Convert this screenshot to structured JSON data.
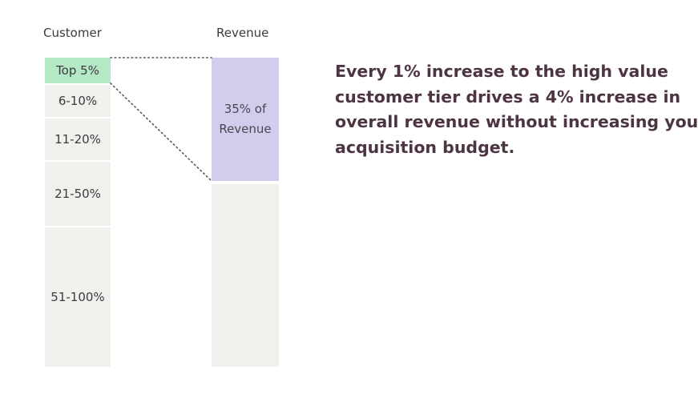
{
  "headers": {
    "customer": "Customer",
    "revenue": "Revenue"
  },
  "customer_tiers": [
    {
      "label": "Top 5%"
    },
    {
      "label": "6-10%"
    },
    {
      "label": "11-20%"
    },
    {
      "label": "21-50%"
    },
    {
      "label": "51-100%"
    }
  ],
  "revenue": {
    "share_line1": "35% of",
    "share_line2": "Revenue",
    "share_percent": 35
  },
  "callout": {
    "line1": "Every 1% increase to the high value",
    "line2": "customer tier drives a 4% increase in",
    "line3": "overall revenue without increasing your",
    "line4": "acquisition budget."
  },
  "colors": {
    "top_tier": "#b4e9c6",
    "revenue_share": "#d2cdec",
    "segment_bg": "#f1f0ed",
    "callout_text": "#4c3443"
  }
}
